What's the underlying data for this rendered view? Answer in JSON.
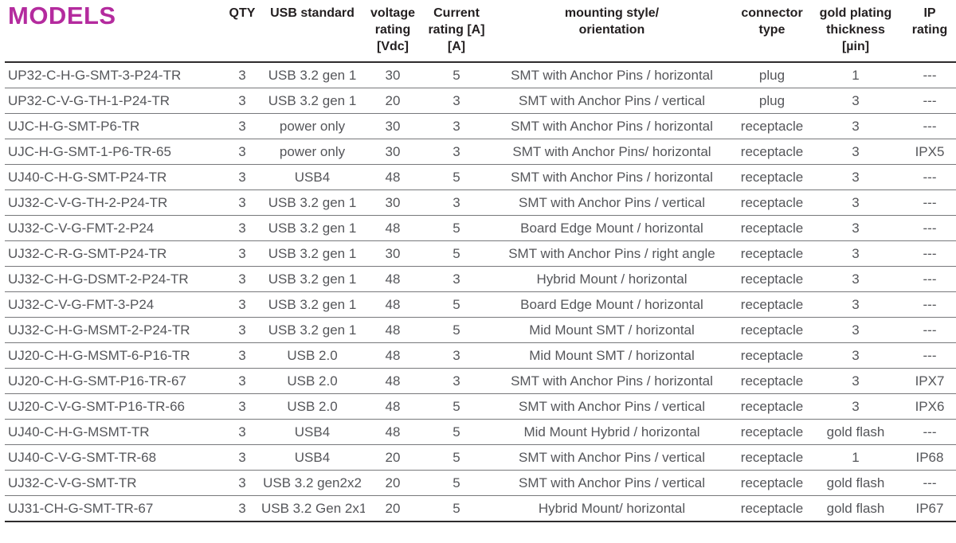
{
  "page": {
    "background": "#ffffff",
    "title_color": "#b42b9e",
    "header_text_color": "#231f20",
    "row_text_color": "#55565a"
  },
  "table": {
    "columns": [
      {
        "id": "model",
        "label": "MODELS"
      },
      {
        "id": "qty",
        "label": "QTY"
      },
      {
        "id": "usb",
        "label": "USB standard"
      },
      {
        "id": "voltage",
        "label": "voltage\nrating\n[Vdc]"
      },
      {
        "id": "current",
        "label": "Current\nrating [A]\n[A]"
      },
      {
        "id": "mounting",
        "label": "mounting style/\norientation"
      },
      {
        "id": "connector",
        "label": "connector\ntype"
      },
      {
        "id": "gold",
        "label": "gold plating\nthickness\n[µin]"
      },
      {
        "id": "ip",
        "label": "IP\nrating"
      }
    ],
    "rows": [
      {
        "model": "UP32-C-H-G-SMT-3-P24-TR",
        "qty": "3",
        "usb": "USB 3.2 gen 1",
        "voltage": "30",
        "current": "5",
        "mounting": "SMT with Anchor Pins / horizontal",
        "connector": "plug",
        "gold": "1",
        "ip": "---"
      },
      {
        "model": "UP32-C-V-G-TH-1-P24-TR",
        "qty": "3",
        "usb": "USB 3.2 gen 1",
        "voltage": "20",
        "current": "3",
        "mounting": "SMT with Anchor Pins / vertical",
        "connector": "plug",
        "gold": "3",
        "ip": "---"
      },
      {
        "model": "UJC-H-G-SMT-P6-TR",
        "qty": "3",
        "usb": "power only",
        "voltage": "30",
        "current": "3",
        "mounting": "SMT with Anchor Pins / horizontal",
        "connector": "receptacle",
        "gold": "3",
        "ip": "---"
      },
      {
        "model": "UJC-H-G-SMT-1-P6-TR-65",
        "qty": "3",
        "usb": "power only",
        "voltage": "30",
        "current": "3",
        "mounting": "SMT with Anchor Pins/ horizontal",
        "connector": "receptacle",
        "gold": "3",
        "ip": "IPX5"
      },
      {
        "model": "UJ40-C-H-G-SMT-P24-TR",
        "qty": "3",
        "usb": "USB4",
        "voltage": "48",
        "current": "5",
        "mounting": "SMT with Anchor Pins / horizontal",
        "connector": "receptacle",
        "gold": "3",
        "ip": "---"
      },
      {
        "model": "UJ32-C-V-G-TH-2-P24-TR",
        "qty": "3",
        "usb": "USB 3.2 gen 1",
        "voltage": "30",
        "current": "3",
        "mounting": "SMT with Anchor Pins / vertical",
        "connector": "receptacle",
        "gold": "3",
        "ip": "---"
      },
      {
        "model": "UJ32-C-V-G-FMT-2-P24",
        "qty": "3",
        "usb": "USB 3.2 gen 1",
        "voltage": "48",
        "current": "5",
        "mounting": "Board Edge Mount / horizontal",
        "connector": "receptacle",
        "gold": "3",
        "ip": "---"
      },
      {
        "model": "UJ32-C-R-G-SMT-P24-TR",
        "qty": "3",
        "usb": "USB 3.2 gen 1",
        "voltage": "30",
        "current": "5",
        "mounting": "SMT with Anchor Pins / right angle",
        "connector": "receptacle",
        "gold": "3",
        "ip": "---"
      },
      {
        "model": "UJ32-C-H-G-DSMT-2-P24-TR",
        "qty": "3",
        "usb": "USB 3.2 gen 1",
        "voltage": "48",
        "current": "3",
        "mounting": "Hybrid Mount / horizontal",
        "connector": "receptacle",
        "gold": "3",
        "ip": "---"
      },
      {
        "model": "UJ32-C-V-G-FMT-3-P24",
        "qty": "3",
        "usb": "USB 3.2 gen 1",
        "voltage": "48",
        "current": "5",
        "mounting": "Board Edge Mount / horizontal",
        "connector": "receptacle",
        "gold": "3",
        "ip": "---"
      },
      {
        "model": "UJ32-C-H-G-MSMT-2-P24-TR",
        "qty": "3",
        "usb": "USB 3.2 gen 1",
        "voltage": "48",
        "current": "5",
        "mounting": "Mid Mount SMT / horizontal",
        "connector": "receptacle",
        "gold": "3",
        "ip": "---"
      },
      {
        "model": "UJ20-C-H-G-MSMT-6-P16-TR",
        "qty": "3",
        "usb": "USB 2.0",
        "voltage": "48",
        "current": "3",
        "mounting": "Mid Mount SMT / horizontal",
        "connector": "receptacle",
        "gold": "3",
        "ip": "---"
      },
      {
        "model": "UJ20-C-H-G-SMT-P16-TR-67",
        "qty": "3",
        "usb": "USB 2.0",
        "voltage": "48",
        "current": "3",
        "mounting": "SMT with Anchor Pins / horizontal",
        "connector": "receptacle",
        "gold": "3",
        "ip": "IPX7"
      },
      {
        "model": "UJ20-C-V-G-SMT-P16-TR-66",
        "qty": "3",
        "usb": "USB 2.0",
        "voltage": "48",
        "current": "5",
        "mounting": "SMT with Anchor Pins / vertical",
        "connector": "receptacle",
        "gold": "3",
        "ip": "IPX6"
      },
      {
        "model": "UJ40-C-H-G-MSMT-TR",
        "qty": "3",
        "usb": "USB4",
        "voltage": "48",
        "current": "5",
        "mounting": "Mid Mount Hybrid / horizontal",
        "connector": "receptacle",
        "gold": "gold flash",
        "ip": "---"
      },
      {
        "model": "UJ40-C-V-G-SMT-TR-68",
        "qty": "3",
        "usb": "USB4",
        "voltage": "20",
        "current": "5",
        "mounting": "SMT with Anchor Pins / vertical",
        "connector": "receptacle",
        "gold": "1",
        "ip": "IP68"
      },
      {
        "model": "UJ32-C-V-G-SMT-TR",
        "qty": "3",
        "usb": "USB 3.2 gen2x2",
        "voltage": "20",
        "current": "5",
        "mounting": "SMT with Anchor Pins / vertical",
        "connector": "receptacle",
        "gold": "gold flash",
        "ip": "---"
      },
      {
        "model": "UJ31-CH-G-SMT-TR-67",
        "qty": "3",
        "usb": "USB 3.2 Gen 2x1",
        "voltage": "20",
        "current": "5",
        "mounting": "Hybrid Mount/ horizontal",
        "connector": "receptacle",
        "gold": "gold flash",
        "ip": "IP67"
      }
    ]
  }
}
